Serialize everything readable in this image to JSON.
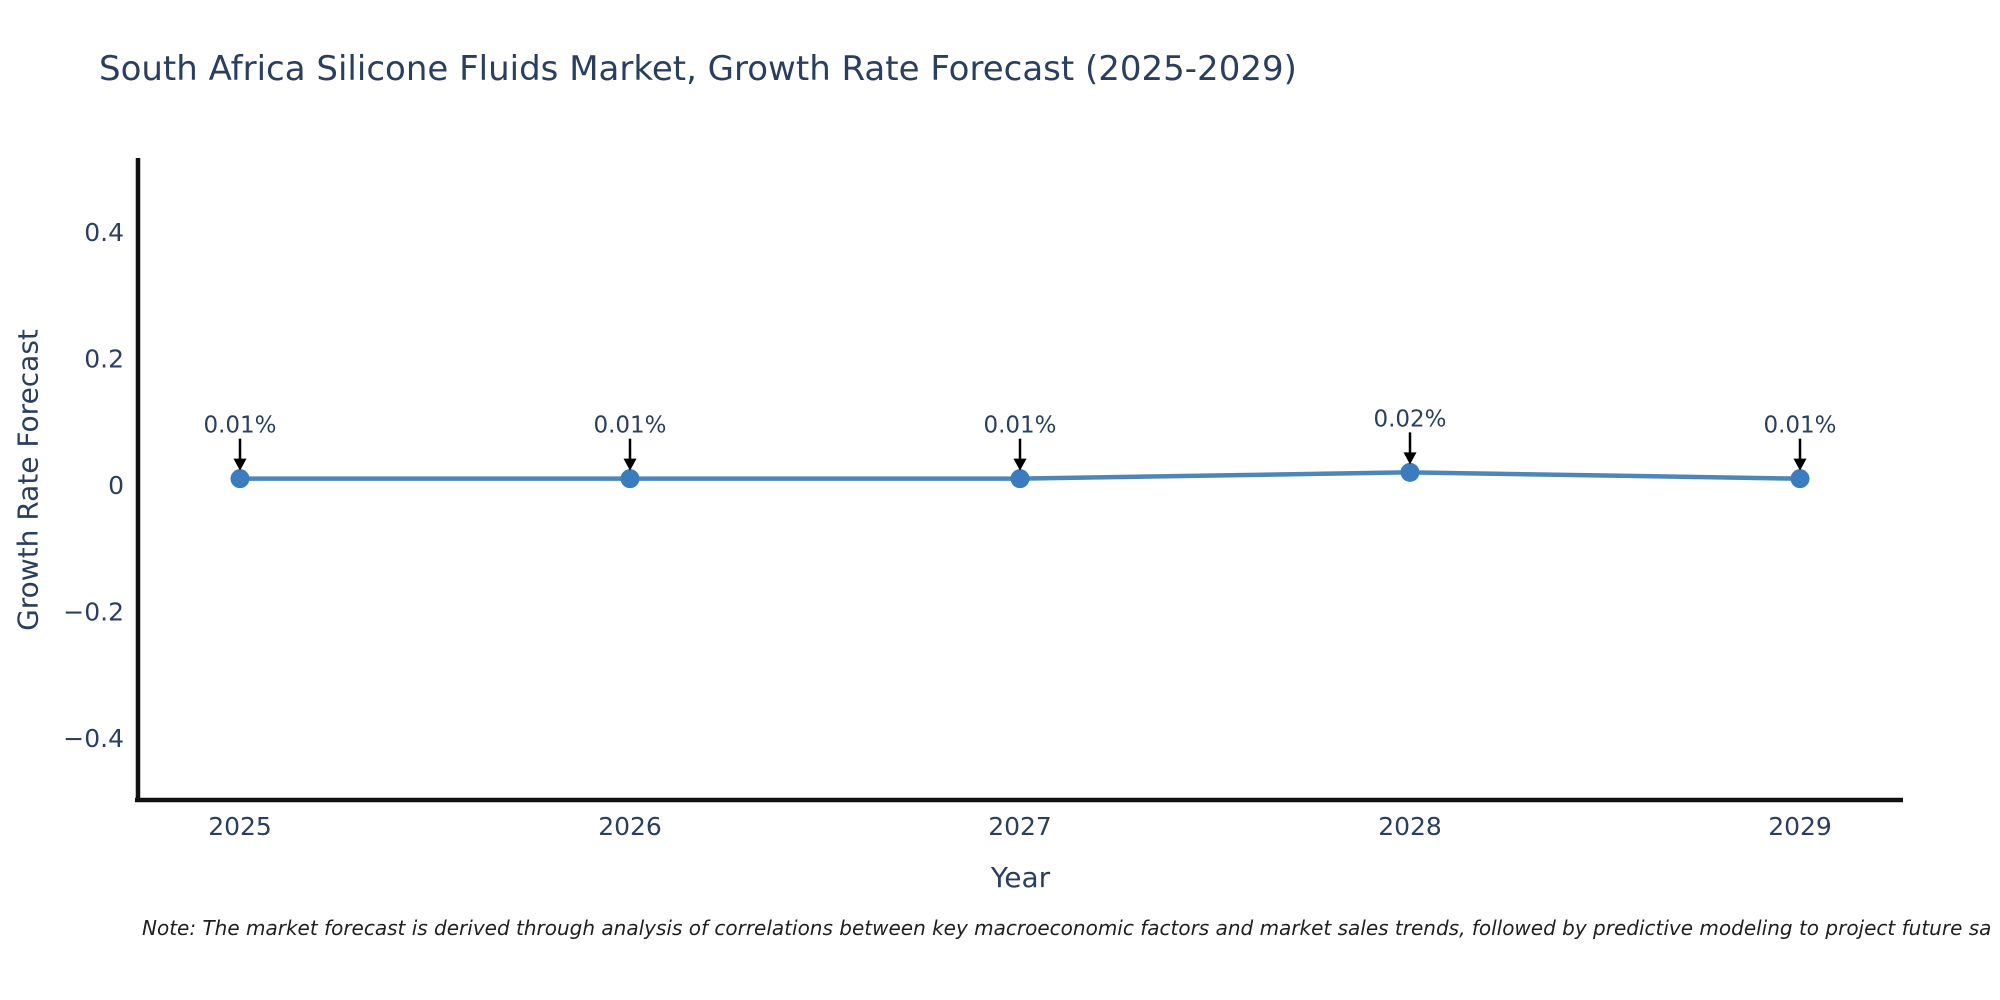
{
  "title": "South Africa Silicone Fluids Market, Growth Rate Forecast (2025-2029)",
  "note": "Note: The market forecast is derived through analysis of correlations between key macroeconomic factors and market sales trends, followed by predictive modeling to project future sa",
  "colors": {
    "line": "#4e86b8",
    "marker": "#3b7cbe",
    "axis": "#111111",
    "text": "#2a3f5f",
    "annotation_text": "#2a3f5f",
    "annotation_arrow": "#000000",
    "note_text": "#1f1f1f",
    "background": "#ffffff"
  },
  "chart_data": {
    "type": "line",
    "title": "South Africa Silicone Fluids Market, Growth Rate Forecast (2025-2029)",
    "x": [
      2025,
      2026,
      2027,
      2028,
      2029
    ],
    "xtick_labels": [
      "2025",
      "2026",
      "2027",
      "2028",
      "2029"
    ],
    "series": [
      {
        "name": "Growth Rate Forecast",
        "values": [
          0.01,
          0.01,
          0.01,
          0.02,
          0.01
        ]
      }
    ],
    "point_labels": [
      "0.01%",
      "0.01%",
      "0.01%",
      "0.02%",
      "0.01%"
    ],
    "xlabel": "Year",
    "ylabel": "Growth Rate Forecast",
    "ylim": [
      -0.5,
      0.52
    ],
    "yticks": [
      0.4,
      0.2,
      0,
      -0.2,
      -0.4
    ],
    "ytick_labels": [
      "0.4",
      "0.2",
      "0",
      "−0.2",
      "−0.4"
    ],
    "grid": false,
    "legend": false,
    "annotation_style": "value label with downward black arrow above each marker"
  }
}
